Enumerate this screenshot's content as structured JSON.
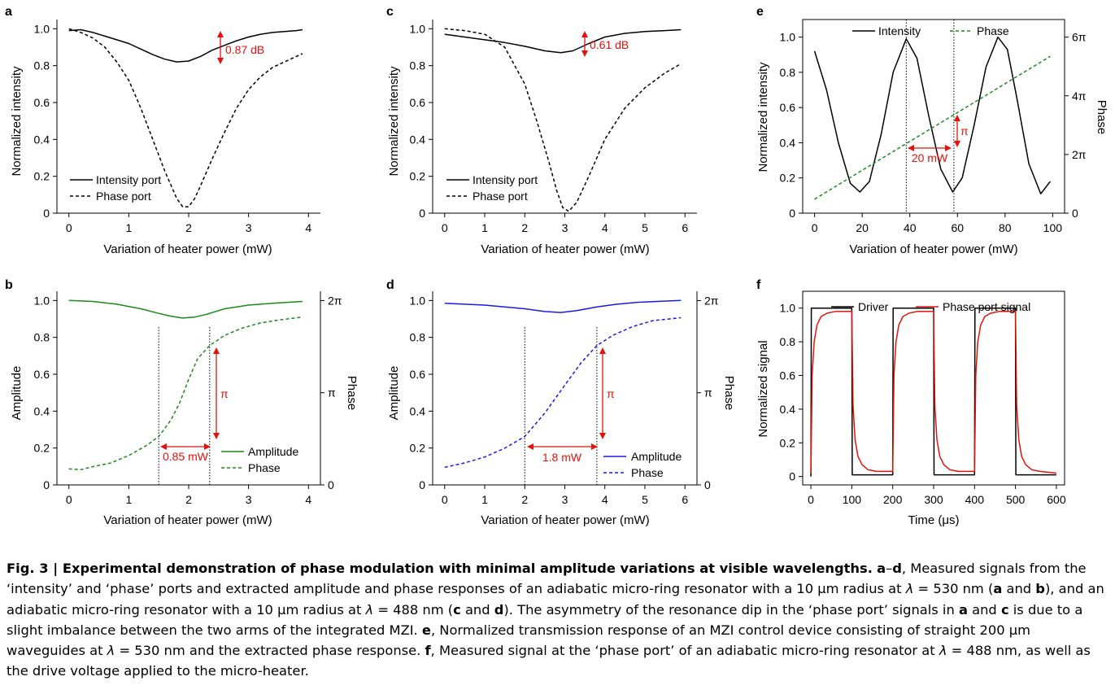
{
  "figure": {
    "panels": [
      {
        "id": "a",
        "panel_label": "a",
        "xlabel": "Variation of heater power (mW)",
        "ylabel": "Normalized intensity",
        "legend": [
          "Intensity port",
          "Phase port"
        ],
        "annotation": "0.87 dB"
      },
      {
        "id": "b",
        "panel_label": "b",
        "xlabel": "Variation of heater power (mW)",
        "ylabel": "Amplitude",
        "y2label": "Phase",
        "legend": [
          "Amplitude",
          "Phase"
        ],
        "annotation": "0.85 mW",
        "annotation2": "π"
      },
      {
        "id": "c",
        "panel_label": "c",
        "xlabel": "Variation of heater power (mW)",
        "ylabel": "Normalized intensity",
        "legend": [
          "Intensity port",
          "Phase port"
        ],
        "annotation": "0.61 dB"
      },
      {
        "id": "d",
        "panel_label": "d",
        "xlabel": "Variation of heater power (mW)",
        "ylabel": "Amplitude",
        "y2label": "Phase",
        "legend": [
          "Amplitude",
          "Phase"
        ],
        "annotation": "1.8 mW",
        "annotation2": "π"
      },
      {
        "id": "e",
        "panel_label": "e",
        "xlabel": "Variation of heater power (mW)",
        "ylabel": "Normalized intensity",
        "y2label": "Phase",
        "legend": [
          "Intensity",
          "Phase"
        ],
        "annotation": "20 mW",
        "annotation2": "π"
      },
      {
        "id": "f",
        "panel_label": "f",
        "xlabel": "Time (μs)",
        "ylabel": "Normalized signal",
        "legend": [
          "Driver",
          "Phase port signal"
        ]
      }
    ]
  },
  "caption": {
    "fig_label": "Fig. 3 | Experimental demonstration of phase modulation with minimal amplitude variations at visible wavelengths.",
    "body_html": " <b>a</b>–<b>d</b>, Measured signals from the ‘intensity’ and ‘phase’ ports and extracted amplitude and phase responses of an adiabatic micro-ring resonator with a 10 μm radius at <i>λ</i> = 530 nm (<b>a</b> and <b>b</b>), and an adiabatic micro-ring resonator with a 10 μm radius at <i>λ</i> = 488 nm (<b>c</b> and <b>d</b>). The asymmetry of the resonance dip in the ‘phase port’ signals in <b>a</b> and <b>c</b> is due to a slight imbalance between the two arms of the integrated MZI. <b>e</b>, Normalized transmission response of an MZI control device consisting of straight 200 μm waveguides at <i>λ</i> = 530 nm and the extracted phase response. <b>f</b>, Measured signal at the ‘phase port’ of an adiabatic micro-ring resonator at <i>λ</i> = 488 nm, as well as the drive voltage applied to the micro-heater."
  },
  "chart_data": [
    {
      "panel": "a",
      "type": "line",
      "xlabel": "Variation of heater power (mW)",
      "ylabel": "Normalized intensity",
      "xlim": [
        -0.2,
        4.2
      ],
      "ylim": [
        0,
        1.05
      ],
      "xticks": [
        0,
        1,
        2,
        3,
        4
      ],
      "xtick_labels": [
        "0",
        "1",
        "2",
        "3",
        "4"
      ],
      "yticks": [
        0,
        0.2,
        0.4,
        0.6,
        0.8,
        1.0
      ],
      "ytick_labels": [
        "0",
        "0.2",
        "0.4",
        "0.6",
        "0.8",
        "1.0"
      ],
      "series": [
        {
          "name": "Intensity port",
          "color": "#000000",
          "style": "solid",
          "x": [
            0,
            0.2,
            0.4,
            0.6,
            0.8,
            1.0,
            1.2,
            1.4,
            1.6,
            1.8,
            2.0,
            2.2,
            2.4,
            2.6,
            2.8,
            3.0,
            3.2,
            3.4,
            3.6,
            3.8,
            3.9
          ],
          "y": [
            0.99,
            0.995,
            0.98,
            0.96,
            0.94,
            0.92,
            0.89,
            0.86,
            0.835,
            0.82,
            0.825,
            0.85,
            0.885,
            0.91,
            0.935,
            0.955,
            0.97,
            0.98,
            0.985,
            0.99,
            0.995
          ]
        },
        {
          "name": "Phase port",
          "color": "#000000",
          "style": "dashed",
          "x": [
            0,
            0.2,
            0.4,
            0.6,
            0.8,
            1.0,
            1.2,
            1.4,
            1.6,
            1.8,
            1.9,
            2.0,
            2.1,
            2.2,
            2.4,
            2.6,
            2.8,
            3.0,
            3.2,
            3.4,
            3.6,
            3.8,
            3.9
          ],
          "y": [
            1.0,
            0.98,
            0.95,
            0.9,
            0.82,
            0.72,
            0.57,
            0.4,
            0.23,
            0.08,
            0.035,
            0.035,
            0.08,
            0.15,
            0.3,
            0.44,
            0.57,
            0.67,
            0.74,
            0.79,
            0.82,
            0.85,
            0.865
          ]
        }
      ],
      "annotation": "0.87 dB"
    },
    {
      "panel": "b",
      "type": "line",
      "xlabel": "Variation of heater power (mW)",
      "ylabel": "Amplitude",
      "y2label": "Phase",
      "xlim": [
        -0.2,
        4.2
      ],
      "ylim": [
        0,
        1.05
      ],
      "y2lim": [
        0,
        6.6
      ],
      "xticks": [
        0,
        1,
        2,
        3,
        4
      ],
      "xtick_labels": [
        "0",
        "1",
        "2",
        "3",
        "4"
      ],
      "yticks": [
        0,
        0.2,
        0.4,
        0.6,
        0.8,
        1.0
      ],
      "ytick_labels": [
        "0",
        "0.2",
        "0.4",
        "0.6",
        "0.8",
        "1.0"
      ],
      "y2ticks": [
        0,
        3.1416,
        6.2832
      ],
      "y2tick_labels": [
        "0",
        "π",
        "2π"
      ],
      "series": [
        {
          "name": "Amplitude",
          "color": "#1a8a1a",
          "style": "solid",
          "axis": "left",
          "x": [
            0,
            0.4,
            0.8,
            1.2,
            1.5,
            1.7,
            1.9,
            2.1,
            2.3,
            2.6,
            3.0,
            3.4,
            3.9
          ],
          "y": [
            1.0,
            0.995,
            0.98,
            0.955,
            0.93,
            0.915,
            0.905,
            0.91,
            0.925,
            0.955,
            0.975,
            0.985,
            0.995
          ]
        },
        {
          "name": "Phase",
          "color": "#1a8a1a",
          "style": "dashed",
          "axis": "right",
          "x": [
            0,
            0.2,
            0.4,
            0.7,
            1.0,
            1.3,
            1.5,
            1.7,
            1.85,
            2.0,
            2.15,
            2.35,
            2.6,
            2.9,
            3.2,
            3.5,
            3.9
          ],
          "y": [
            0.55,
            0.52,
            0.62,
            0.75,
            1.0,
            1.35,
            1.65,
            2.2,
            2.8,
            3.6,
            4.3,
            4.75,
            5.1,
            5.35,
            5.52,
            5.62,
            5.72
          ]
        }
      ],
      "markers": {
        "vlines": [
          1.5,
          2.35
        ]
      },
      "annotation": "0.85 mW",
      "annotation2": "π"
    },
    {
      "panel": "c",
      "type": "line",
      "xlabel": "Variation of heater power (mW)",
      "ylabel": "Normalized intensity",
      "xlim": [
        -0.3,
        6.3
      ],
      "ylim": [
        0,
        1.05
      ],
      "xticks": [
        0,
        1,
        2,
        3,
        4,
        5,
        6
      ],
      "xtick_labels": [
        "0",
        "1",
        "2",
        "3",
        "4",
        "5",
        "6"
      ],
      "yticks": [
        0,
        0.2,
        0.4,
        0.6,
        0.8,
        1.0
      ],
      "ytick_labels": [
        "0",
        "0.2",
        "0.4",
        "0.6",
        "0.8",
        "1.0"
      ],
      "series": [
        {
          "name": "Intensity port",
          "color": "#000000",
          "style": "solid",
          "x": [
            0,
            0.5,
            1.0,
            1.5,
            2.0,
            2.5,
            2.9,
            3.2,
            3.6,
            4.0,
            4.5,
            5.0,
            5.5,
            5.9
          ],
          "y": [
            0.97,
            0.955,
            0.94,
            0.925,
            0.905,
            0.88,
            0.87,
            0.88,
            0.92,
            0.955,
            0.975,
            0.985,
            0.99,
            0.995
          ]
        },
        {
          "name": "Phase port",
          "color": "#000000",
          "style": "dashed",
          "x": [
            0,
            0.5,
            1.0,
            1.5,
            2.0,
            2.3,
            2.6,
            2.8,
            2.95,
            3.1,
            3.3,
            3.6,
            4.0,
            4.5,
            5.0,
            5.5,
            5.9
          ],
          "y": [
            1.0,
            0.99,
            0.97,
            0.9,
            0.7,
            0.5,
            0.28,
            0.12,
            0.03,
            0.01,
            0.06,
            0.2,
            0.4,
            0.57,
            0.68,
            0.76,
            0.81
          ]
        }
      ],
      "annotation": "0.61 dB"
    },
    {
      "panel": "d",
      "type": "line",
      "xlabel": "Variation of heater power (mW)",
      "ylabel": "Amplitude",
      "y2label": "Phase",
      "xlim": [
        -0.3,
        6.3
      ],
      "ylim": [
        0,
        1.05
      ],
      "y2lim": [
        0,
        6.6
      ],
      "xticks": [
        0,
        1,
        2,
        3,
        4,
        5,
        6
      ],
      "xtick_labels": [
        "0",
        "1",
        "2",
        "3",
        "4",
        "5",
        "6"
      ],
      "yticks": [
        0,
        0.2,
        0.4,
        0.6,
        0.8,
        1.0
      ],
      "ytick_labels": [
        "0",
        "0.2",
        "0.4",
        "0.6",
        "0.8",
        "1.0"
      ],
      "y2ticks": [
        0,
        3.1416,
        6.2832
      ],
      "y2tick_labels": [
        "0",
        "π",
        "2π"
      ],
      "series": [
        {
          "name": "Amplitude",
          "color": "#1a1ae6",
          "style": "solid",
          "axis": "left",
          "x": [
            0,
            0.5,
            1.0,
            1.5,
            2.0,
            2.5,
            2.9,
            3.3,
            3.8,
            4.3,
            4.8,
            5.3,
            5.9
          ],
          "y": [
            0.985,
            0.98,
            0.975,
            0.965,
            0.955,
            0.94,
            0.935,
            0.945,
            0.965,
            0.98,
            0.99,
            0.995,
            1.0
          ]
        },
        {
          "name": "Phase",
          "color": "#1a1ae6",
          "style": "dashed",
          "axis": "right",
          "x": [
            0,
            0.5,
            1.0,
            1.5,
            2.0,
            2.5,
            3.0,
            3.4,
            3.8,
            4.2,
            4.7,
            5.2,
            5.9
          ],
          "y": [
            0.6,
            0.75,
            0.95,
            1.25,
            1.65,
            2.45,
            3.4,
            4.15,
            4.75,
            5.1,
            5.4,
            5.6,
            5.7
          ]
        }
      ],
      "markers": {
        "vlines": [
          2.0,
          3.8
        ]
      },
      "annotation": "1.8 mW",
      "annotation2": "π"
    },
    {
      "panel": "e",
      "type": "line",
      "xlabel": "Variation of heater power (mW)",
      "ylabel": "Normalized intensity",
      "y2label": "Phase",
      "xlim": [
        -5,
        105
      ],
      "ylim": [
        0,
        1.1
      ],
      "y2lim": [
        0,
        6.912
      ],
      "xticks": [
        0,
        20,
        40,
        60,
        80,
        100
      ],
      "xtick_labels": [
        "0",
        "20",
        "40",
        "60",
        "80",
        "100"
      ],
      "yticks": [
        0,
        0.2,
        0.4,
        0.6,
        0.8,
        1.0
      ],
      "ytick_labels": [
        "0",
        "0.2",
        "0.4",
        "0.6",
        "0.8",
        "1.0"
      ],
      "y2ticks": [
        0,
        2.0944,
        4.1888,
        6.2832
      ],
      "y2tick_labels": [
        "0",
        "2π",
        "4π",
        "6π"
      ],
      "series": [
        {
          "name": "Intensity",
          "color": "#000000",
          "style": "solid",
          "axis": "left",
          "x": [
            0,
            5,
            10,
            15,
            19,
            23,
            28,
            33,
            38.5,
            43,
            48,
            53,
            58,
            62,
            67,
            72,
            77,
            81,
            85,
            90,
            95,
            99
          ],
          "y": [
            0.92,
            0.7,
            0.4,
            0.17,
            0.12,
            0.18,
            0.45,
            0.8,
            0.99,
            0.88,
            0.55,
            0.25,
            0.12,
            0.2,
            0.5,
            0.83,
            1.0,
            0.93,
            0.65,
            0.28,
            0.11,
            0.18
          ]
        },
        {
          "name": "Phase",
          "color": "#1a8a1a",
          "style": "dashed",
          "axis": "right",
          "x": [
            0,
            99
          ],
          "y": [
            0.5,
            5.6
          ]
        }
      ],
      "markers": {
        "vlines": [
          38.5,
          58.5
        ]
      },
      "annotation": "20 mW",
      "annotation2": "π"
    },
    {
      "panel": "f",
      "type": "line",
      "xlabel": "Time (μs)",
      "ylabel": "Normalized signal",
      "xlim": [
        -20,
        620
      ],
      "ylim": [
        -0.05,
        1.1
      ],
      "xticks": [
        0,
        100,
        200,
        300,
        400,
        500,
        600
      ],
      "xtick_labels": [
        "0",
        "100",
        "200",
        "300",
        "400",
        "500",
        "600"
      ],
      "yticks": [
        0,
        0.2,
        0.4,
        0.6,
        0.8,
        1.0
      ],
      "ytick_labels": [
        "0",
        "0.2",
        "0.4",
        "0.6",
        "0.8",
        "1.0"
      ],
      "series": [
        {
          "name": "Driver",
          "color": "#000000",
          "style": "solid",
          "x": [
            0,
            1,
            100,
            101,
            200,
            201,
            300,
            301,
            400,
            401,
            500,
            501,
            600
          ],
          "y": [
            0,
            1.0,
            1.0,
            0.01,
            0.01,
            1.0,
            1.0,
            0.01,
            0.01,
            1.0,
            1.0,
            0.01,
            0.01
          ]
        },
        {
          "name": "Phase port signal",
          "color": "#e3120b",
          "style": "solid",
          "x": [
            0,
            3,
            8,
            15,
            25,
            40,
            60,
            100,
            103,
            108,
            115,
            125,
            140,
            160,
            200,
            203,
            208,
            215,
            225,
            240,
            260,
            300,
            303,
            308,
            315,
            325,
            340,
            360,
            400,
            403,
            408,
            415,
            425,
            440,
            460,
            500,
            503,
            508,
            515,
            525,
            540,
            560,
            600
          ],
          "y": [
            0.02,
            0.6,
            0.8,
            0.9,
            0.95,
            0.97,
            0.98,
            0.98,
            0.42,
            0.22,
            0.12,
            0.07,
            0.04,
            0.03,
            0.03,
            0.6,
            0.8,
            0.9,
            0.95,
            0.97,
            0.98,
            0.98,
            0.42,
            0.22,
            0.12,
            0.07,
            0.04,
            0.03,
            0.03,
            0.6,
            0.8,
            0.9,
            0.95,
            0.97,
            0.98,
            0.98,
            0.42,
            0.22,
            0.12,
            0.07,
            0.04,
            0.03,
            0.02
          ]
        }
      ]
    }
  ]
}
